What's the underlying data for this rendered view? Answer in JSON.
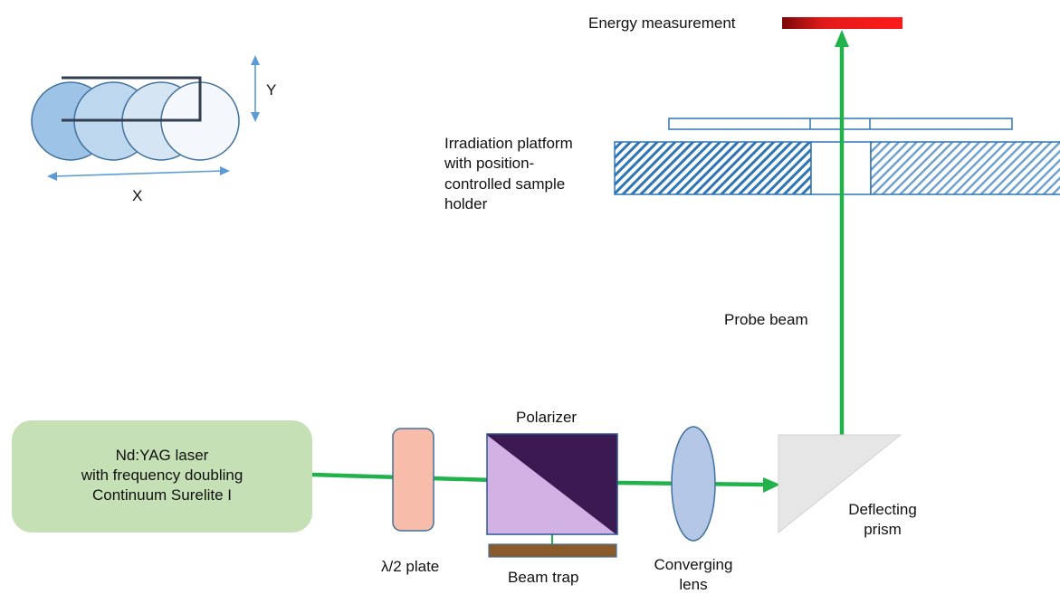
{
  "labels": {
    "energy_measurement": "Energy measurement",
    "platform": [
      "Irradiation platform",
      "with position-",
      "controlled sample",
      "holder"
    ],
    "probe_beam": "Probe beam",
    "laser": [
      "Nd:YAG laser",
      "with frequency doubling",
      "Continuum Surelite I"
    ],
    "half_wave_plate": "λ/2 plate",
    "polarizer": "Polarizer",
    "beam_trap": "Beam trap",
    "converging_lens": [
      "Converging",
      "lens"
    ],
    "deflecting_prism": [
      "Deflecting",
      "prism"
    ],
    "axis_x": "X",
    "axis_y": "Y"
  },
  "colors": {
    "beam": "#22b24c",
    "laser_box": "#c5e0b4",
    "waveplate": "#f8bcaa",
    "polarizer_dark": "#3b1a52",
    "polarizer_light": "#d2b2e4",
    "beam_trap": "#8a5a2b",
    "lens": "#b4c7e7",
    "prism": "#e6e6e6",
    "detector": "#e31a1a",
    "platform_hatch": "#2e75b6",
    "scan_outline": "#41719c",
    "scan_bracket": "#333f50",
    "arrow": "#5b9bd5"
  }
}
